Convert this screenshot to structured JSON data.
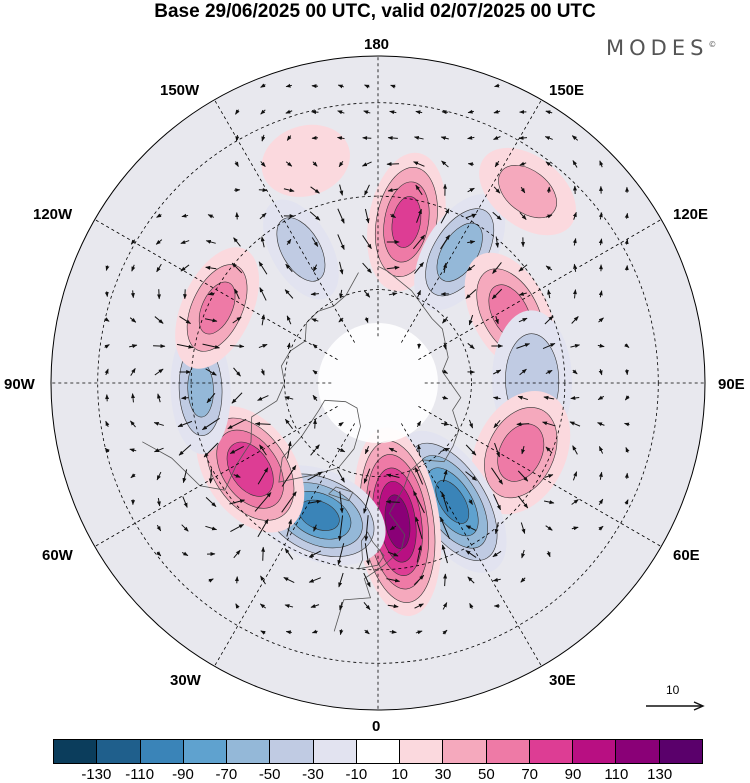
{
  "title": "Base 29/06/2025 00 UTC, valid 02/07/2025 00 UTC",
  "logo": "MODES",
  "logo_mark": "©",
  "longitude_labels": {
    "top": "180",
    "bottom": "0",
    "left": "90W",
    "right": "90E",
    "upper_left_1": "150W",
    "upper_left_2": "120W",
    "upper_right_1": "150E",
    "upper_right_2": "120E",
    "lower_left_1": "60W",
    "lower_left_2": "30W",
    "lower_right_1": "60E",
    "lower_right_2": "30E"
  },
  "reference_vector": {
    "label": "10"
  },
  "colorbar": {
    "colors": [
      "#0b3d5c",
      "#1f5f8c",
      "#3a84b8",
      "#5fa2cf",
      "#94b8d8",
      "#c0cbe3",
      "#e2e3f0",
      "#ffffff",
      "#fbd9de",
      "#f5a9bd",
      "#ee7aa6",
      "#dd3d94",
      "#b80f82",
      "#8a0077",
      "#5a006b"
    ],
    "tick_labels": [
      "-130",
      "-110",
      "-90",
      "-70",
      "-50",
      "-30",
      "-10",
      "10",
      "30",
      "50",
      "70",
      "90",
      "110",
      "130"
    ]
  },
  "anomaly_centers": [
    {
      "lon": 170,
      "lat": 55,
      "value": 75,
      "shape": [
        38,
        70
      ]
    },
    {
      "lon": 148,
      "lat": 57,
      "value": -60,
      "shape": [
        35,
        65
      ]
    },
    {
      "lon": 118,
      "lat": 58,
      "value": 55,
      "shape": [
        65,
        38
      ]
    },
    {
      "lon": 91,
      "lat": 57,
      "value": -40,
      "shape": [
        70,
        40
      ]
    },
    {
      "lon": 64,
      "lat": 56,
      "value": 55,
      "shape": [
        65,
        45
      ]
    },
    {
      "lon": 32,
      "lat": 60,
      "value": -95,
      "shape": [
        40,
        80
      ]
    },
    {
      "lon": 8,
      "lat": 60,
      "value": 120,
      "shape": [
        42,
        95
      ]
    },
    {
      "lon": -24,
      "lat": 59,
      "value": -95,
      "shape": [
        70,
        45
      ]
    },
    {
      "lon": -56,
      "lat": 57,
      "value": 85,
      "shape": [
        70,
        45
      ]
    },
    {
      "lon": -88,
      "lat": 52,
      "value": -50,
      "shape": [
        65,
        30
      ]
    },
    {
      "lon": -115,
      "lat": 52,
      "value": 50,
      "shape": [
        65,
        35
      ]
    },
    {
      "lon": -150,
      "lat": 57,
      "value": -35,
      "shape": [
        30,
        55
      ]
    },
    {
      "lon": 142,
      "lat": 38,
      "value": 30,
      "shape": [
        55,
        35
      ]
    },
    {
      "lon": -162,
      "lat": 40,
      "value": 20,
      "shape": [
        45,
        35
      ]
    }
  ]
}
